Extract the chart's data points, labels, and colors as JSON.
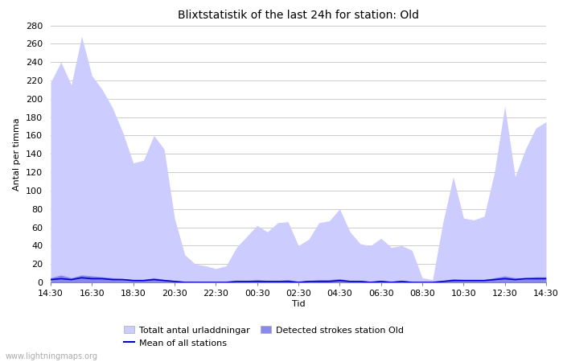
{
  "title": "Blixtstatistik of the last 24h for station: Old",
  "xlabel": "Tid",
  "ylabel": "Antal per timma",
  "watermark": "www.lightningmaps.org",
  "x_ticks": [
    "14:30",
    "16:30",
    "18:30",
    "20:30",
    "22:30",
    "00:30",
    "02:30",
    "04:30",
    "06:30",
    "08:30",
    "10:30",
    "12:30",
    "14:30"
  ],
  "ylim": [
    0,
    280
  ],
  "yticks": [
    0,
    20,
    40,
    60,
    80,
    100,
    120,
    140,
    160,
    180,
    200,
    220,
    240,
    260,
    280
  ],
  "legend": {
    "total_label": "Totalt antal urladdningar",
    "station_label": "Detected strokes station Old",
    "mean_label": "Mean of all stations"
  },
  "total_color": "#ccccff",
  "station_color": "#8888ee",
  "mean_color": "#0000cc",
  "background_color": "#ffffff",
  "grid_color": "#cccccc",
  "title_fontsize": 10,
  "axis_fontsize": 8,
  "tick_fontsize": 8,
  "total_x": [
    0,
    1,
    2,
    3,
    4,
    5,
    6,
    7,
    8,
    9,
    10,
    11,
    12,
    13,
    14,
    15,
    16,
    17,
    18,
    19,
    20,
    21,
    22,
    23,
    24,
    25,
    26,
    27,
    28,
    29,
    30,
    31,
    32,
    33,
    34,
    35,
    36,
    37,
    38,
    39,
    40,
    41,
    42,
    43,
    44,
    45,
    46,
    47,
    48
  ],
  "total_y": [
    218,
    240,
    215,
    268,
    225,
    210,
    190,
    163,
    130,
    133,
    160,
    145,
    70,
    30,
    20,
    18,
    15,
    18,
    38,
    50,
    62,
    55,
    65,
    66,
    40,
    47,
    65,
    67,
    80,
    55,
    42,
    40,
    48,
    38,
    40,
    35,
    5,
    3,
    65,
    115,
    70,
    68,
    72,
    120,
    192,
    115,
    145,
    168,
    175
  ],
  "station_y": [
    5,
    8,
    5,
    8,
    7,
    6,
    5,
    4,
    3,
    3,
    5,
    3,
    2,
    1,
    1,
    0,
    0,
    0,
    1,
    2,
    3,
    2,
    2,
    3,
    1,
    2,
    3,
    3,
    4,
    2,
    2,
    1,
    2,
    1,
    2,
    1,
    0,
    0,
    2,
    4,
    3,
    3,
    3,
    5,
    7,
    5,
    5,
    6,
    6
  ],
  "mean_y": [
    3,
    4,
    3,
    5,
    4,
    4,
    3,
    3,
    2,
    2,
    3,
    2,
    1,
    0,
    0,
    0,
    0,
    0,
    1,
    1,
    1,
    1,
    1,
    1,
    0,
    1,
    1,
    1,
    2,
    1,
    1,
    0,
    1,
    0,
    1,
    0,
    0,
    0,
    1,
    2,
    2,
    2,
    2,
    3,
    4,
    3,
    4,
    4,
    4
  ]
}
